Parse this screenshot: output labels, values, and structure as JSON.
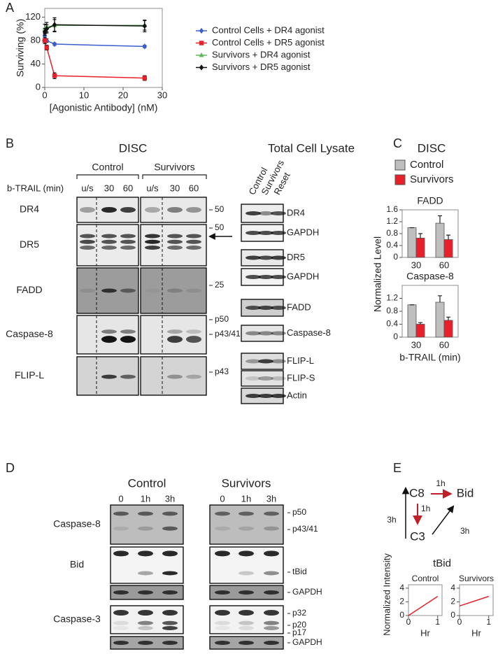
{
  "panel_labels": [
    "A",
    "B",
    "C",
    "D",
    "E"
  ],
  "chart_data": [
    {
      "type": "line",
      "x_label": "[Agonistic Antibody] (nM)",
      "y_label": "Surviving (%)",
      "x": [
        0,
        0.5,
        2.5,
        25.5
      ],
      "xlim": [
        0,
        30
      ],
      "xticks": [
        0,
        10,
        20,
        30
      ],
      "ylim": [
        0,
        135
      ],
      "yticks": [
        0,
        40,
        80,
        120
      ],
      "legend": "right",
      "series": [
        {
          "name": "Control Cells + DR4 agonist",
          "color": "#3a5fcd",
          "marker": "diamond",
          "values": [
            88,
            80,
            74,
            70
          ],
          "errors": [
            3,
            3,
            2,
            2
          ]
        },
        {
          "name": "Control Cells + DR5 agonist",
          "color": "#e8202a",
          "marker": "square",
          "values": [
            80,
            68,
            20,
            16
          ],
          "errors": [
            5,
            4,
            5,
            4
          ]
        },
        {
          "name": "Survivors + DR4 agonist",
          "color": "#5cb85c",
          "marker": "triangle",
          "values": [
            100,
            103,
            106,
            106
          ],
          "errors": [
            8,
            8,
            10,
            8
          ]
        },
        {
          "name": "Survivors + DR5 agonist",
          "color": "#111111",
          "marker": "diamond",
          "values": [
            95,
            100,
            107,
            105
          ],
          "errors": [
            6,
            7,
            12,
            10
          ]
        }
      ]
    },
    {
      "type": "bar",
      "title": "FADD",
      "categories": [
        "30",
        "60"
      ],
      "ylim": [
        0,
        1.6
      ],
      "yticks": [
        0,
        0.4,
        0.8,
        1.2,
        1.6
      ],
      "series": [
        {
          "name": "Control",
          "color": "#bfbfbf",
          "values": [
            1.0,
            1.15
          ],
          "errors": [
            0,
            0.25
          ]
        },
        {
          "name": "Survivors",
          "color": "#e8202a",
          "values": [
            0.65,
            0.6
          ],
          "errors": [
            0.15,
            0.15
          ]
        }
      ]
    },
    {
      "type": "bar",
      "title": "Caspase-8",
      "x_label": "b-TRAIL (min)",
      "categories": [
        "30",
        "60"
      ],
      "ylim": [
        0,
        1.6
      ],
      "yticks": [
        0,
        0.4,
        0.8,
        1.2
      ],
      "series": [
        {
          "color": "#bfbfbf",
          "values": [
            1.0,
            1.08
          ],
          "errors": [
            0,
            0.2
          ]
        },
        {
          "color": "#e8202a",
          "values": [
            0.4,
            0.52
          ],
          "errors": [
            0.05,
            0.1
          ]
        }
      ]
    },
    {
      "type": "line",
      "title": "Control",
      "x_label": "Hr",
      "y_label": "Normalized Intensity",
      "x": [
        0,
        1
      ],
      "xlim": [
        0,
        1.15
      ],
      "xticks": [
        0,
        1
      ],
      "ylim": [
        0,
        4.5
      ],
      "yticks": [
        0,
        2,
        4
      ],
      "series": [
        {
          "color": "#e8202a",
          "values": [
            0,
            2.8
          ]
        }
      ]
    },
    {
      "type": "line",
      "title": "Survivors",
      "x_label": "Hr",
      "x": [
        0,
        1
      ],
      "xlim": [
        0,
        1.15
      ],
      "xticks": [
        0,
        1
      ],
      "ylim": [
        0,
        4.5
      ],
      "yticks": [
        0,
        2,
        4
      ],
      "series": [
        {
          "color": "#e8202a",
          "values": [
            1.4,
            2.8
          ]
        }
      ]
    }
  ],
  "panel_b": {
    "disc_title": "DISC",
    "lysate_title": "Total Cell Lysate",
    "groups": [
      "Control",
      "Survivors"
    ],
    "treatment_label": "b-TRAIL (min)",
    "lanes": [
      "u/s",
      "30",
      "60",
      "u/s",
      "30",
      "60"
    ],
    "rows": [
      "DR4",
      "DR5",
      "FADD",
      "Caspase-8",
      "FLIP-L"
    ],
    "markers": [
      "50",
      "50",
      "25",
      "p50",
      "p43/41",
      "p43"
    ],
    "lysate_columns": [
      "Control",
      "Survivors",
      "Reset"
    ],
    "lysate_rows": [
      "DR4",
      "GAPDH",
      "DR5",
      "GAPDH",
      "FADD",
      "Caspase-8",
      "FLIP-L",
      "FLIP-S",
      "Actin"
    ]
  },
  "panel_c": {
    "title": "DISC",
    "y_label": "Normalized Level"
  },
  "panel_d": {
    "groups": [
      "Control",
      "Survivors"
    ],
    "lanes": [
      "0",
      "1h",
      "3h",
      "0",
      "1h",
      "3h"
    ],
    "rows": [
      "Caspase-8",
      "Bid",
      "Caspase-3"
    ],
    "markers": [
      "p50",
      "p43/41",
      "tBid",
      "GAPDH",
      "p32",
      "p20",
      "p17",
      "GAPDH"
    ]
  },
  "panel_e": {
    "nodes": [
      "C8",
      "Bid",
      "C3"
    ],
    "edges": [
      "1h",
      "1h",
      "3h",
      "3h"
    ],
    "title": "tBid"
  }
}
